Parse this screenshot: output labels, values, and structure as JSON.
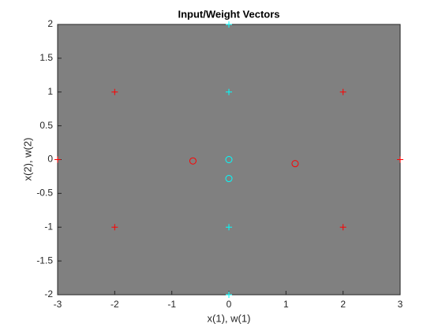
{
  "chart_data": {
    "type": "scatter",
    "title": "Input/Weight Vectors",
    "xlabel": "x(1), w(1)",
    "ylabel": "x(2), w(2)",
    "xlim": [
      -3,
      3
    ],
    "ylim": [
      -2,
      2
    ],
    "xticks": [
      -3,
      -2,
      -1,
      0,
      1,
      2,
      3
    ],
    "yticks": [
      -2,
      -1.5,
      -1,
      -0.5,
      0,
      0.5,
      1,
      1.5,
      2
    ],
    "background": "#808080",
    "series": [
      {
        "color": "#ff0000",
        "marker": "plus",
        "x": [
          -2,
          2,
          -2,
          2,
          -3,
          3
        ],
        "y": [
          1,
          1,
          -1,
          -1,
          0,
          0
        ]
      },
      {
        "color": "#00ffff",
        "marker": "plus",
        "x": [
          0,
          0,
          0,
          0
        ],
        "y": [
          2,
          1,
          -1,
          -2
        ]
      },
      {
        "color": "#ff0000",
        "marker": "circle",
        "x": [
          -0.63,
          1.16
        ],
        "y": [
          -0.02,
          -0.06
        ]
      },
      {
        "color": "#00ffff",
        "marker": "circle",
        "x": [
          0,
          0
        ],
        "y": [
          0,
          -0.28
        ]
      }
    ]
  }
}
